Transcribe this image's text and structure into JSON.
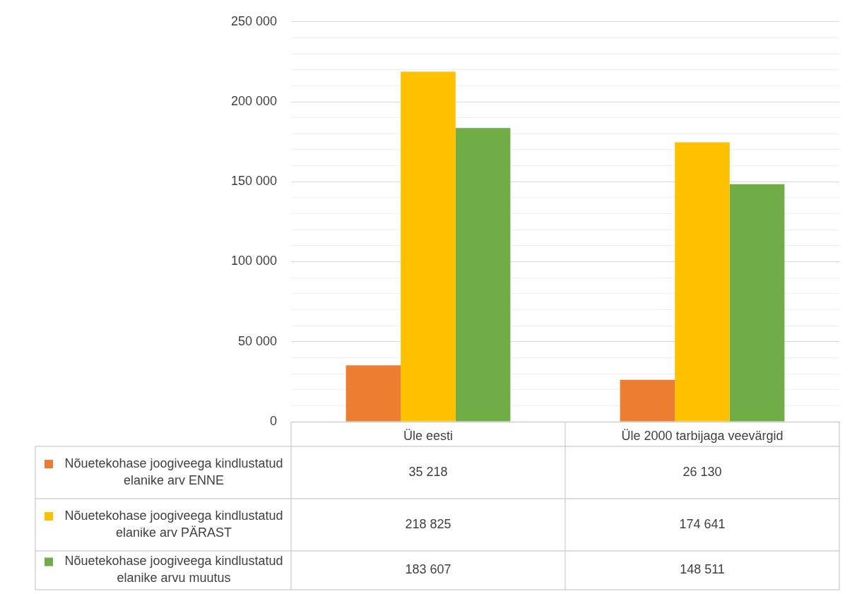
{
  "chart_data": {
    "type": "bar",
    "categories": [
      "Üle eesti",
      "Üle 2000 tarbijaga veevärgid"
    ],
    "series": [
      {
        "name": "Nõuetekohase joogiveega kindlustatud elanike arv ENNE",
        "color": "#ed7d31",
        "values": [
          35218,
          26130
        ],
        "value_labels": [
          "35 218",
          "26 130"
        ]
      },
      {
        "name": "Nõuetekohase joogiveega kindlustatud elanike arv PÄRAST",
        "color": "#ffc000",
        "values": [
          218825,
          174641
        ],
        "value_labels": [
          "218 825",
          "174 641"
        ]
      },
      {
        "name": "Nõuetekohase joogiveega kindlustatud elanike arvu muutus",
        "color": "#70ad47",
        "values": [
          183607,
          148511
        ],
        "value_labels": [
          "183 607",
          "148 511"
        ]
      }
    ],
    "ylim": [
      0,
      250000
    ],
    "yticks": [
      {
        "value": 0,
        "label": "0"
      },
      {
        "value": 10000,
        "label": null
      },
      {
        "value": 20000,
        "label": null
      },
      {
        "value": 30000,
        "label": null
      },
      {
        "value": 40000,
        "label": null
      },
      {
        "value": 50000,
        "label": "50 000"
      },
      {
        "value": 60000,
        "label": null
      },
      {
        "value": 70000,
        "label": null
      },
      {
        "value": 80000,
        "label": null
      },
      {
        "value": 90000,
        "label": null
      },
      {
        "value": 100000,
        "label": "100 000"
      },
      {
        "value": 110000,
        "label": null
      },
      {
        "value": 120000,
        "label": null
      },
      {
        "value": 130000,
        "label": null
      },
      {
        "value": 140000,
        "label": null
      },
      {
        "value": 150000,
        "label": "150 000"
      },
      {
        "value": 160000,
        "label": null
      },
      {
        "value": 170000,
        "label": null
      },
      {
        "value": 180000,
        "label": null
      },
      {
        "value": 190000,
        "label": null
      },
      {
        "value": 200000,
        "label": "200 000"
      },
      {
        "value": 210000,
        "label": null
      },
      {
        "value": 220000,
        "label": null
      },
      {
        "value": 230000,
        "label": null
      },
      {
        "value": 240000,
        "label": null
      },
      {
        "value": 250000,
        "label": "250 000"
      }
    ],
    "grid": true,
    "legend": "bottom"
  }
}
